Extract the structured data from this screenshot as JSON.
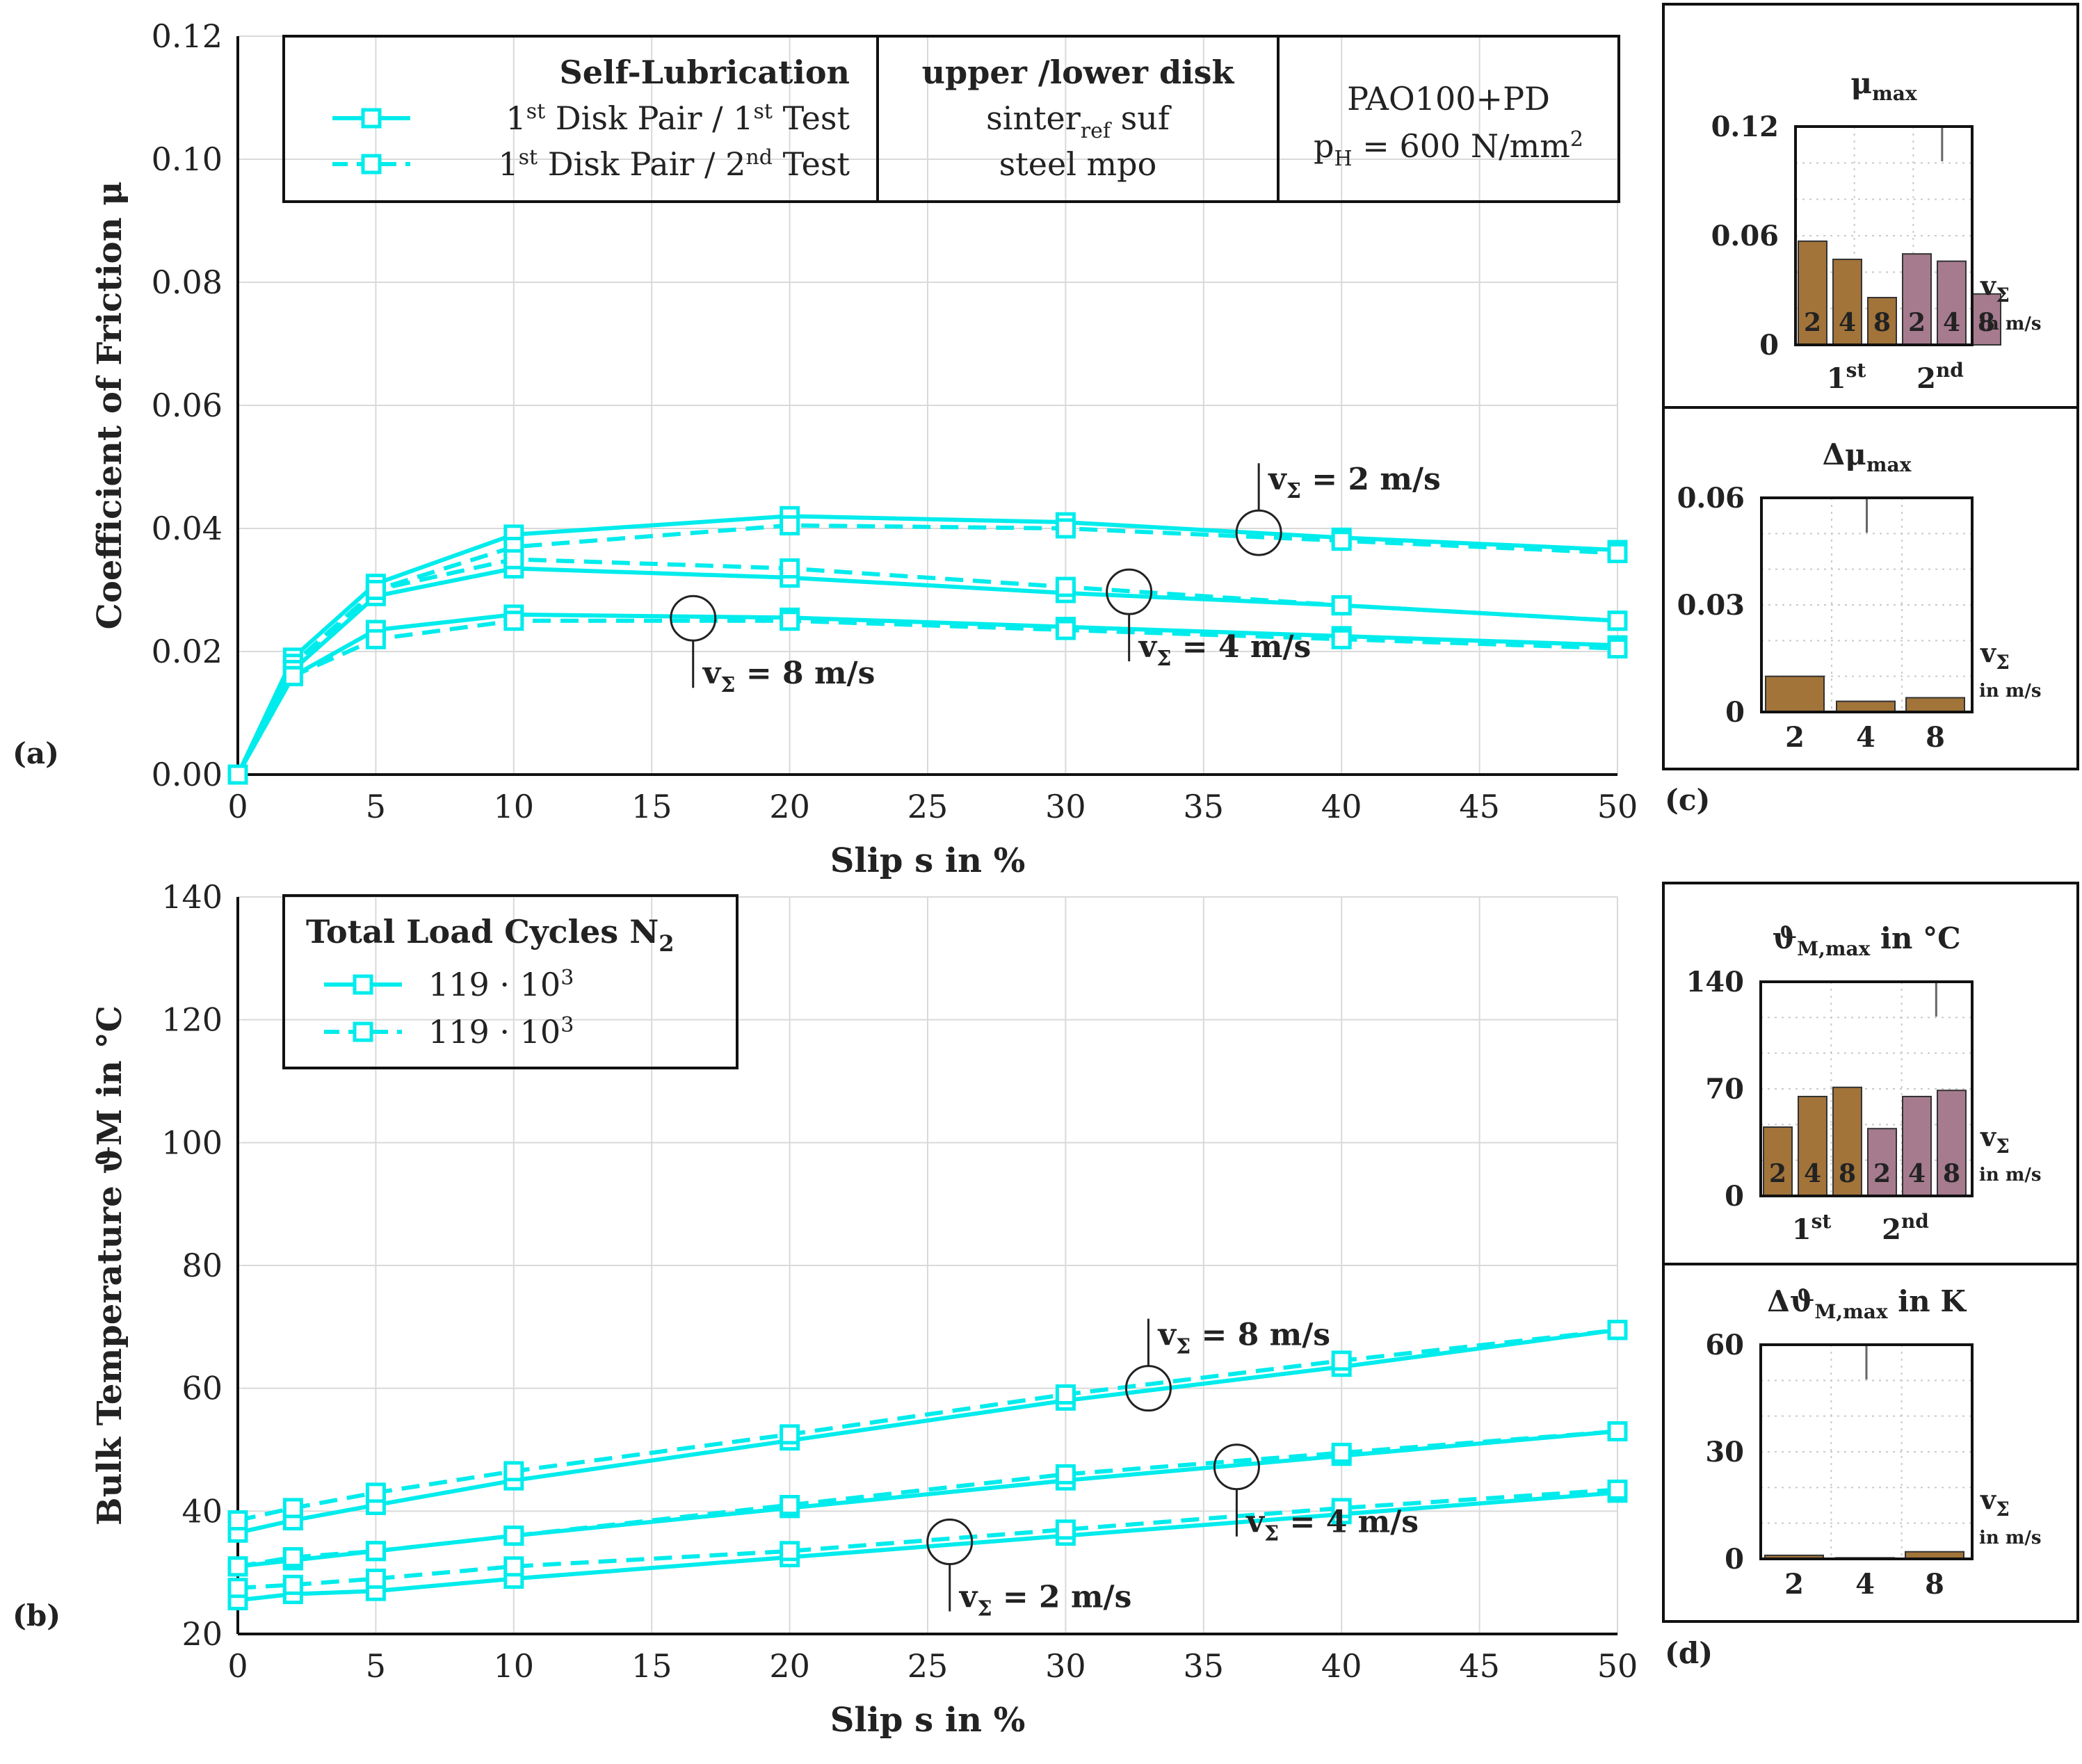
{
  "colors": {
    "line": "#00ecec",
    "bar_first": "#a2743a",
    "bar_second": "#a67b8e",
    "axis": "#111111",
    "grid": "#d9d9d9"
  },
  "panel_labels": {
    "a": "(a)",
    "b": "(b)",
    "c": "(c)",
    "d": "(d)"
  },
  "chart_data": [
    {
      "id": "a",
      "type": "line",
      "xlabel": "Slip s in %",
      "ylabel": "Coefficient of Friction μ",
      "xlim": [
        0,
        50
      ],
      "ylim": [
        0,
        0.12
      ],
      "xticks": [
        "0",
        "5",
        "10",
        "15",
        "20",
        "25",
        "30",
        "35",
        "40",
        "45",
        "50"
      ],
      "yticks": [
        "0.00",
        "0.02",
        "0.04",
        "0.06",
        "0.08",
        "0.10",
        "0.12"
      ],
      "x": [
        0,
        2,
        5,
        10,
        20,
        30,
        40,
        50
      ],
      "series": [
        {
          "name": "1st Disk Pair / 1st Test",
          "speed": "2 m/s",
          "dash": "solid",
          "values": [
            0,
            0.019,
            0.031,
            0.039,
            0.042,
            0.041,
            0.0385,
            0.0365
          ]
        },
        {
          "name": "1st Disk Pair / 2nd Test",
          "speed": "2 m/s",
          "dash": "dashed",
          "values": [
            0,
            0.018,
            0.03,
            0.037,
            0.0405,
            0.04,
            0.038,
            0.036
          ]
        },
        {
          "name": "1st Disk Pair / 1st Test",
          "speed": "4 m/s",
          "dash": "solid",
          "values": [
            0,
            0.017,
            0.029,
            0.0335,
            0.032,
            0.0295,
            0.0275,
            0.025
          ]
        },
        {
          "name": "1st Disk Pair / 2nd Test",
          "speed": "4 m/s",
          "dash": "dashed",
          "values": [
            0,
            0.017,
            0.03,
            0.035,
            0.0335,
            0.0305,
            0.0275,
            0.025
          ]
        },
        {
          "name": "1st Disk Pair / 1st Test",
          "speed": "8 m/s",
          "dash": "solid",
          "values": [
            0,
            0.016,
            0.0235,
            0.026,
            0.0255,
            0.024,
            0.0225,
            0.021
          ]
        },
        {
          "name": "1st Disk Pair / 2nd Test",
          "speed": "8 m/s",
          "dash": "dashed",
          "values": [
            0,
            0.016,
            0.022,
            0.025,
            0.025,
            0.0235,
            0.022,
            0.0205
          ]
        }
      ],
      "legend": {
        "title": "Self-Lubrication",
        "entries": [
          {
            "base": "1",
            "sup": "st",
            "mid": " Disk Pair / 1",
            "sup2": "st",
            "end": " Test",
            "dash": "solid"
          },
          {
            "base": "1",
            "sup": "st",
            "mid": " Disk Pair / 2",
            "sup2": "nd",
            "end": " Test",
            "dash": "dashed"
          }
        ],
        "col2_title": "upper /lower disk",
        "col2_line1": "sinter",
        "col2_line1_sub": "ref",
        "col2_line1_end": " suf",
        "col2_line2": "steel mpo",
        "col3_line1": "PAO100+PD",
        "col3_line2_a": "p",
        "col3_line2_sub": "H",
        "col3_line2_b": " = 600 N/mm",
        "col3_line2_sup": "2"
      },
      "annotations": [
        "v_Σ = 2 m/s",
        "v_Σ = 4 m/s",
        "v_Σ = 8 m/s"
      ]
    },
    {
      "id": "b",
      "type": "line",
      "xlabel": "Slip s in %",
      "ylabel": "Bulk Temperature ϑM in °C",
      "xlim": [
        0,
        50
      ],
      "ylim": [
        20,
        140
      ],
      "xticks": [
        "0",
        "5",
        "10",
        "15",
        "20",
        "25",
        "30",
        "35",
        "40",
        "45",
        "50"
      ],
      "yticks": [
        "20",
        "40",
        "60",
        "80",
        "100",
        "120",
        "140"
      ],
      "x": [
        0,
        2,
        5,
        10,
        20,
        30,
        40,
        50
      ],
      "series": [
        {
          "name": "119 · 10³",
          "speed": "8 m/s",
          "dash": "solid",
          "values": [
            36.5,
            38.5,
            41,
            45,
            51.5,
            58,
            63.5,
            69.5
          ]
        },
        {
          "name": "119 · 10³",
          "speed": "8 m/s",
          "dash": "dashed",
          "values": [
            38.5,
            40.5,
            43,
            46.5,
            52.5,
            59,
            64.5,
            69.5
          ]
        },
        {
          "name": "119 · 10³",
          "speed": "4 m/s",
          "dash": "solid",
          "values": [
            31,
            32,
            33.5,
            36,
            40.5,
            45,
            49,
            53
          ]
        },
        {
          "name": "119 · 10³",
          "speed": "4 m/s",
          "dash": "dashed",
          "values": [
            31,
            32.5,
            33.5,
            36,
            41,
            46,
            49.5,
            53
          ]
        },
        {
          "name": "119 · 10³",
          "speed": "2 m/s",
          "dash": "solid",
          "values": [
            25.5,
            26.5,
            27,
            29,
            32.5,
            36,
            39.5,
            43
          ]
        },
        {
          "name": "119 · 10³",
          "speed": "2 m/s",
          "dash": "dashed",
          "values": [
            27.5,
            28,
            29,
            31,
            33.5,
            37,
            40.5,
            43.5
          ]
        }
      ],
      "legend": {
        "title": "Total Load Cycles N",
        "title_sub": "2",
        "entries": [
          {
            "label": "119 · 10",
            "sup": "3",
            "dash": "solid"
          },
          {
            "label": "119 · 10",
            "sup": "3",
            "dash": "dashed"
          }
        ]
      },
      "annotations": [
        "v_Σ = 8 m/s",
        "v_Σ = 4 m/s",
        "v_Σ = 2 m/s"
      ]
    },
    {
      "id": "c_top",
      "type": "bar",
      "title": "μ",
      "title_sub": "max",
      "ylim": [
        0,
        0.12
      ],
      "yticks": [
        "0",
        "0.06",
        "0.12"
      ],
      "bar_labels": [
        "2",
        "4",
        "8",
        "2",
        "4",
        "8"
      ],
      "groups": [
        {
          "base": "1",
          "sup": "st"
        },
        {
          "base": "2",
          "sup": "nd"
        }
      ],
      "series": [
        {
          "name": "1st",
          "values": [
            0.057,
            0.047,
            0.026
          ]
        },
        {
          "name": "2nd",
          "values": [
            0.05,
            0.046,
            0.028
          ]
        }
      ],
      "unit_label": "v",
      "unit_sub": "Σ",
      "unit_line2": "in m/s"
    },
    {
      "id": "c_bottom",
      "type": "bar",
      "title": "Δμ",
      "title_sub": "max",
      "ylim": [
        0,
        0.06
      ],
      "yticks": [
        "0",
        "0.03",
        "0.06"
      ],
      "categories": [
        "2",
        "4",
        "8"
      ],
      "values": [
        0.01,
        0.003,
        0.004
      ],
      "unit_label": "v",
      "unit_sub": "Σ",
      "unit_line2": "in m/s"
    },
    {
      "id": "d_top",
      "type": "bar",
      "title": "ϑ",
      "title_sub": "M,max",
      "title_end": " in °C",
      "ylim": [
        0,
        140
      ],
      "yticks": [
        "0",
        "70",
        "140"
      ],
      "bar_labels": [
        "2",
        "4",
        "8",
        "2",
        "4",
        "8"
      ],
      "groups": [
        {
          "base": "1",
          "sup": "st"
        },
        {
          "base": "2",
          "sup": "nd"
        }
      ],
      "series": [
        {
          "name": "1st",
          "values": [
            45,
            65,
            71
          ]
        },
        {
          "name": "2nd",
          "values": [
            44,
            65,
            69
          ]
        }
      ],
      "unit_label": "v",
      "unit_sub": "Σ",
      "unit_line2": "in m/s"
    },
    {
      "id": "d_bottom",
      "type": "bar",
      "title": "Δϑ",
      "title_sub": "M,max",
      "title_end": " in K",
      "ylim": [
        0,
        60
      ],
      "yticks": [
        "0",
        "30",
        "60"
      ],
      "categories": [
        "2",
        "4",
        "8"
      ],
      "values": [
        1.0,
        0.3,
        2.0
      ],
      "unit_label": "v",
      "unit_sub": "Σ",
      "unit_line2": "in m/s"
    }
  ]
}
